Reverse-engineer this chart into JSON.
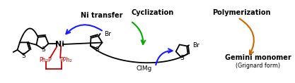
{
  "bg_color": "#ffffff",
  "label_ni_transfer": "Ni transfer",
  "label_cyclization": "Cyclization",
  "label_polymerization": "Polymerization",
  "label_clmg": "ClMg",
  "label_br1": "Br",
  "label_br2": "Br",
  "label_ni": "Ni",
  "label_ph2p": "Ph₂P",
  "label_pph2": "PPh₂",
  "label_gemini": "Gemini monomer",
  "label_grignard": "(Grignard form)",
  "color_black": "#000000",
  "color_blue": "#1a1aff",
  "color_green": "#00aa00",
  "color_orange": "#cc6600",
  "color_red": "#cc0000",
  "lw": 1.3,
  "fs_label": 7.0,
  "fs_chem": 6.5,
  "fs_small": 5.8
}
